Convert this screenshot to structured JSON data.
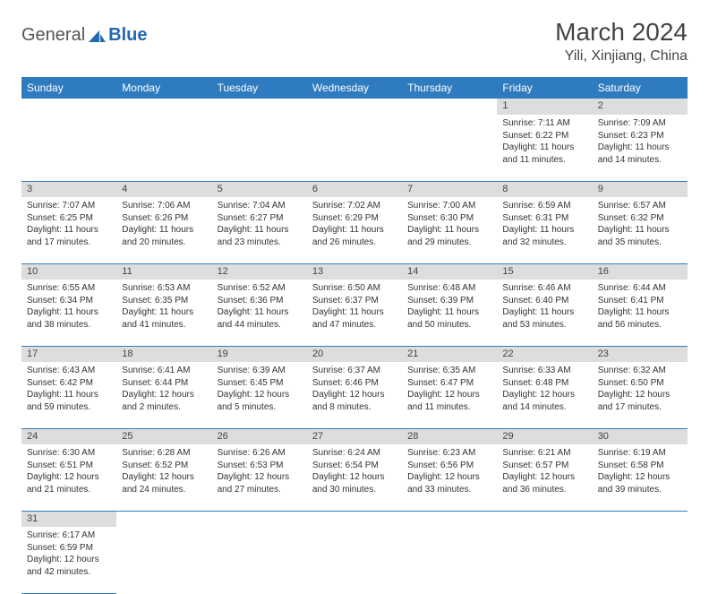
{
  "logo": {
    "text1": "General",
    "text2": "Blue"
  },
  "title": "March 2024",
  "location": "Yili, Xinjiang, China",
  "colors": {
    "header_bg": "#2f7bbf",
    "header_text": "#ffffff",
    "daynum_bg": "#dddddd",
    "border": "#2f7bbf",
    "logo_blue": "#2269b3",
    "body_text": "#333333"
  },
  "day_headers": [
    "Sunday",
    "Monday",
    "Tuesday",
    "Wednesday",
    "Thursday",
    "Friday",
    "Saturday"
  ],
  "weeks": [
    [
      null,
      null,
      null,
      null,
      null,
      {
        "n": "1",
        "sr": "Sunrise: 7:11 AM",
        "ss": "Sunset: 6:22 PM",
        "d1": "Daylight: 11 hours",
        "d2": "and 11 minutes."
      },
      {
        "n": "2",
        "sr": "Sunrise: 7:09 AM",
        "ss": "Sunset: 6:23 PM",
        "d1": "Daylight: 11 hours",
        "d2": "and 14 minutes."
      }
    ],
    [
      {
        "n": "3",
        "sr": "Sunrise: 7:07 AM",
        "ss": "Sunset: 6:25 PM",
        "d1": "Daylight: 11 hours",
        "d2": "and 17 minutes."
      },
      {
        "n": "4",
        "sr": "Sunrise: 7:06 AM",
        "ss": "Sunset: 6:26 PM",
        "d1": "Daylight: 11 hours",
        "d2": "and 20 minutes."
      },
      {
        "n": "5",
        "sr": "Sunrise: 7:04 AM",
        "ss": "Sunset: 6:27 PM",
        "d1": "Daylight: 11 hours",
        "d2": "and 23 minutes."
      },
      {
        "n": "6",
        "sr": "Sunrise: 7:02 AM",
        "ss": "Sunset: 6:29 PM",
        "d1": "Daylight: 11 hours",
        "d2": "and 26 minutes."
      },
      {
        "n": "7",
        "sr": "Sunrise: 7:00 AM",
        "ss": "Sunset: 6:30 PM",
        "d1": "Daylight: 11 hours",
        "d2": "and 29 minutes."
      },
      {
        "n": "8",
        "sr": "Sunrise: 6:59 AM",
        "ss": "Sunset: 6:31 PM",
        "d1": "Daylight: 11 hours",
        "d2": "and 32 minutes."
      },
      {
        "n": "9",
        "sr": "Sunrise: 6:57 AM",
        "ss": "Sunset: 6:32 PM",
        "d1": "Daylight: 11 hours",
        "d2": "and 35 minutes."
      }
    ],
    [
      {
        "n": "10",
        "sr": "Sunrise: 6:55 AM",
        "ss": "Sunset: 6:34 PM",
        "d1": "Daylight: 11 hours",
        "d2": "and 38 minutes."
      },
      {
        "n": "11",
        "sr": "Sunrise: 6:53 AM",
        "ss": "Sunset: 6:35 PM",
        "d1": "Daylight: 11 hours",
        "d2": "and 41 minutes."
      },
      {
        "n": "12",
        "sr": "Sunrise: 6:52 AM",
        "ss": "Sunset: 6:36 PM",
        "d1": "Daylight: 11 hours",
        "d2": "and 44 minutes."
      },
      {
        "n": "13",
        "sr": "Sunrise: 6:50 AM",
        "ss": "Sunset: 6:37 PM",
        "d1": "Daylight: 11 hours",
        "d2": "and 47 minutes."
      },
      {
        "n": "14",
        "sr": "Sunrise: 6:48 AM",
        "ss": "Sunset: 6:39 PM",
        "d1": "Daylight: 11 hours",
        "d2": "and 50 minutes."
      },
      {
        "n": "15",
        "sr": "Sunrise: 6:46 AM",
        "ss": "Sunset: 6:40 PM",
        "d1": "Daylight: 11 hours",
        "d2": "and 53 minutes."
      },
      {
        "n": "16",
        "sr": "Sunrise: 6:44 AM",
        "ss": "Sunset: 6:41 PM",
        "d1": "Daylight: 11 hours",
        "d2": "and 56 minutes."
      }
    ],
    [
      {
        "n": "17",
        "sr": "Sunrise: 6:43 AM",
        "ss": "Sunset: 6:42 PM",
        "d1": "Daylight: 11 hours",
        "d2": "and 59 minutes."
      },
      {
        "n": "18",
        "sr": "Sunrise: 6:41 AM",
        "ss": "Sunset: 6:44 PM",
        "d1": "Daylight: 12 hours",
        "d2": "and 2 minutes."
      },
      {
        "n": "19",
        "sr": "Sunrise: 6:39 AM",
        "ss": "Sunset: 6:45 PM",
        "d1": "Daylight: 12 hours",
        "d2": "and 5 minutes."
      },
      {
        "n": "20",
        "sr": "Sunrise: 6:37 AM",
        "ss": "Sunset: 6:46 PM",
        "d1": "Daylight: 12 hours",
        "d2": "and 8 minutes."
      },
      {
        "n": "21",
        "sr": "Sunrise: 6:35 AM",
        "ss": "Sunset: 6:47 PM",
        "d1": "Daylight: 12 hours",
        "d2": "and 11 minutes."
      },
      {
        "n": "22",
        "sr": "Sunrise: 6:33 AM",
        "ss": "Sunset: 6:48 PM",
        "d1": "Daylight: 12 hours",
        "d2": "and 14 minutes."
      },
      {
        "n": "23",
        "sr": "Sunrise: 6:32 AM",
        "ss": "Sunset: 6:50 PM",
        "d1": "Daylight: 12 hours",
        "d2": "and 17 minutes."
      }
    ],
    [
      {
        "n": "24",
        "sr": "Sunrise: 6:30 AM",
        "ss": "Sunset: 6:51 PM",
        "d1": "Daylight: 12 hours",
        "d2": "and 21 minutes."
      },
      {
        "n": "25",
        "sr": "Sunrise: 6:28 AM",
        "ss": "Sunset: 6:52 PM",
        "d1": "Daylight: 12 hours",
        "d2": "and 24 minutes."
      },
      {
        "n": "26",
        "sr": "Sunrise: 6:26 AM",
        "ss": "Sunset: 6:53 PM",
        "d1": "Daylight: 12 hours",
        "d2": "and 27 minutes."
      },
      {
        "n": "27",
        "sr": "Sunrise: 6:24 AM",
        "ss": "Sunset: 6:54 PM",
        "d1": "Daylight: 12 hours",
        "d2": "and 30 minutes."
      },
      {
        "n": "28",
        "sr": "Sunrise: 6:23 AM",
        "ss": "Sunset: 6:56 PM",
        "d1": "Daylight: 12 hours",
        "d2": "and 33 minutes."
      },
      {
        "n": "29",
        "sr": "Sunrise: 6:21 AM",
        "ss": "Sunset: 6:57 PM",
        "d1": "Daylight: 12 hours",
        "d2": "and 36 minutes."
      },
      {
        "n": "30",
        "sr": "Sunrise: 6:19 AM",
        "ss": "Sunset: 6:58 PM",
        "d1": "Daylight: 12 hours",
        "d2": "and 39 minutes."
      }
    ],
    [
      {
        "n": "31",
        "sr": "Sunrise: 6:17 AM",
        "ss": "Sunset: 6:59 PM",
        "d1": "Daylight: 12 hours",
        "d2": "and 42 minutes."
      },
      null,
      null,
      null,
      null,
      null,
      null
    ]
  ]
}
